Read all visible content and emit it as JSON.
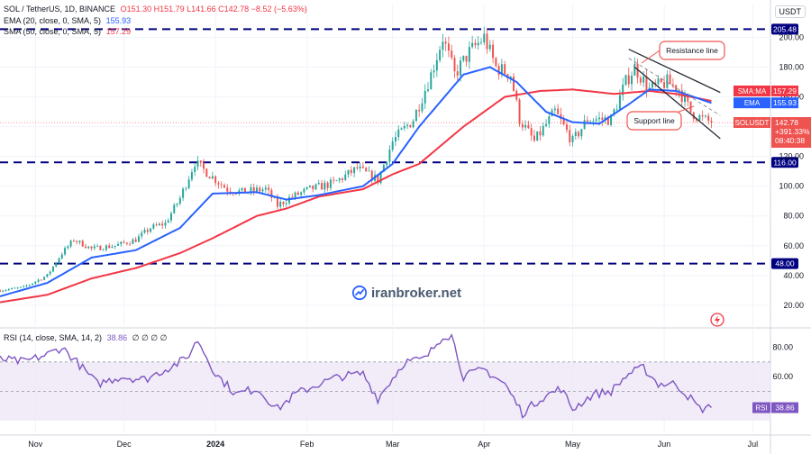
{
  "header": {
    "symbol": "SOL / TetherUS, 1D, BINANCE",
    "ohlc": "O151.30 H151.79 L141.66 C142.78 −8.52 (−5.63%)",
    "ema_label": "EMA (20, close, 0, SMA, 5)",
    "ema_value": "155.93",
    "sma_label": "SMA (50, close, 0, SMA, 5)",
    "sma_value": "157.29",
    "rsi_label": "RSI (14, close, SMA, 14, 2)",
    "rsi_value": "38.86",
    "rsi_extra": "∅ ∅ ∅ ∅",
    "currency": "USDT"
  },
  "watermark": "iranbroker.net",
  "colors": {
    "up": "#26a69a",
    "down": "#ef5350",
    "ema": "#2962ff",
    "sma": "#f23645",
    "rsi": "#7e57c2",
    "level": "#000080",
    "rsi_band": "#ede7f6"
  },
  "annotations": {
    "resistance": "Resistance line",
    "support": "Support line"
  },
  "badges": {
    "sma": {
      "name": "SMA:MA",
      "value": "157.29"
    },
    "ema": {
      "name": "EMA",
      "value": "155.93"
    },
    "price": {
      "name": "SOLUSDT",
      "value": "142.78",
      "pct": "+391.33%",
      "time": "08:40:38"
    },
    "rsi": {
      "name": "RSI",
      "value": "38.86"
    }
  },
  "chart_data": [
    {
      "type": "candlestick",
      "title": "SOL / TetherUS, 1D, BINANCE",
      "y_ticks": [
        20,
        40,
        60,
        80,
        100,
        120,
        140,
        160,
        180,
        200
      ],
      "y_tick_labels": [
        "20.00",
        "40.00",
        "60.00",
        "80.00",
        "100.00",
        "120.00",
        "140.00",
        "160.00",
        "180.00",
        "200.00"
      ],
      "ylim": [
        6,
        213
      ],
      "x_ticks": [
        "Nov",
        "Dec",
        "2024",
        "Feb",
        "Mar",
        "Apr",
        "May",
        "Jun",
        "Jul"
      ],
      "levels": [
        {
          "value": 205.48,
          "label": "205.48"
        },
        {
          "value": 116.0,
          "label": "116.00"
        },
        {
          "value": 48.0,
          "label": "48.00"
        }
      ],
      "last_close": 142.78,
      "anchors_close": [
        [
          "2023-10-20",
          30
        ],
        [
          "2023-10-28",
          32
        ],
        [
          "2023-11-05",
          40
        ],
        [
          "2023-11-10",
          55
        ],
        [
          "2023-11-14",
          64
        ],
        [
          "2023-11-20",
          58
        ],
        [
          "2023-11-28",
          60
        ],
        [
          "2023-12-05",
          64
        ],
        [
          "2023-12-10",
          72
        ],
        [
          "2023-12-15",
          75
        ],
        [
          "2023-12-20",
          92
        ],
        [
          "2023-12-25",
          116
        ],
        [
          "2023-12-31",
          106
        ],
        [
          "2024-01-05",
          98
        ],
        [
          "2024-01-10",
          96
        ],
        [
          "2024-01-18",
          98
        ],
        [
          "2024-01-22",
          87
        ],
        [
          "2024-01-26",
          92
        ],
        [
          "2024-02-02",
          98
        ],
        [
          "2024-02-10",
          102
        ],
        [
          "2024-02-18",
          112
        ],
        [
          "2024-02-25",
          104
        ],
        [
          "2024-03-01",
          130
        ],
        [
          "2024-03-08",
          145
        ],
        [
          "2024-03-14",
          175
        ],
        [
          "2024-03-18",
          200
        ],
        [
          "2024-03-22",
          175
        ],
        [
          "2024-03-27",
          190
        ],
        [
          "2024-04-01",
          200
        ],
        [
          "2024-04-05",
          180
        ],
        [
          "2024-04-10",
          175
        ],
        [
          "2024-04-13",
          145
        ],
        [
          "2024-04-18",
          130
        ],
        [
          "2024-04-25",
          150
        ],
        [
          "2024-05-01",
          130
        ],
        [
          "2024-05-06",
          145
        ],
        [
          "2024-05-14",
          145
        ],
        [
          "2024-05-19",
          170
        ],
        [
          "2024-05-22",
          180
        ],
        [
          "2024-05-27",
          165
        ],
        [
          "2024-06-02",
          170
        ],
        [
          "2024-06-06",
          165
        ],
        [
          "2024-06-10",
          150
        ],
        [
          "2024-06-14",
          145
        ],
        [
          "2024-06-17",
          142.78
        ]
      ],
      "ema20": [
        [
          "2023-10-20",
          26
        ],
        [
          "2023-11-05",
          35
        ],
        [
          "2023-11-20",
          52
        ],
        [
          "2023-12-05",
          57
        ],
        [
          "2023-12-20",
          72
        ],
        [
          "2023-12-31",
          95
        ],
        [
          "2024-01-15",
          96
        ],
        [
          "2024-01-25",
          91
        ],
        [
          "2024-02-05",
          94
        ],
        [
          "2024-02-20",
          100
        ],
        [
          "2024-03-01",
          115
        ],
        [
          "2024-03-10",
          140
        ],
        [
          "2024-03-25",
          175
        ],
        [
          "2024-04-03",
          180
        ],
        [
          "2024-04-12",
          170
        ],
        [
          "2024-04-22",
          150
        ],
        [
          "2024-05-01",
          143
        ],
        [
          "2024-05-10",
          142
        ],
        [
          "2024-05-20",
          155
        ],
        [
          "2024-05-27",
          165
        ],
        [
          "2024-06-05",
          164
        ],
        [
          "2024-06-17",
          155.93
        ]
      ],
      "sma50": [
        [
          "2023-10-20",
          22
        ],
        [
          "2023-11-05",
          27
        ],
        [
          "2023-11-20",
          38
        ],
        [
          "2023-12-05",
          45
        ],
        [
          "2023-12-20",
          55
        ],
        [
          "2023-12-31",
          65
        ],
        [
          "2024-01-15",
          80
        ],
        [
          "2024-01-25",
          85
        ],
        [
          "2024-02-05",
          93
        ],
        [
          "2024-02-20",
          98
        ],
        [
          "2024-03-01",
          108
        ],
        [
          "2024-03-10",
          115
        ],
        [
          "2024-03-25",
          140
        ],
        [
          "2024-04-08",
          160
        ],
        [
          "2024-04-20",
          164
        ],
        [
          "2024-05-01",
          165
        ],
        [
          "2024-05-15",
          162
        ],
        [
          "2024-05-27",
          164
        ],
        [
          "2024-06-05",
          162
        ],
        [
          "2024-06-17",
          157.29
        ]
      ],
      "channel": {
        "upper": [
          [
            "2024-05-20",
            192
          ],
          [
            "2024-06-20",
            163
          ]
        ],
        "lower": [
          [
            "2024-05-22",
            180
          ],
          [
            "2024-06-20",
            132
          ]
        ]
      }
    },
    {
      "type": "line",
      "title": "RSI (14, close, SMA, 14, 2)",
      "y_ticks": [
        40,
        60,
        80
      ],
      "y_tick_labels": [
        "40.00",
        "60.00",
        "80.00"
      ],
      "ylim": [
        22,
        92
      ],
      "band": [
        30,
        70
      ],
      "midline": 50,
      "last": 38.86,
      "anchors": [
        [
          "2023-10-20",
          72
        ],
        [
          "2023-10-28",
          70
        ],
        [
          "2023-11-05",
          75
        ],
        [
          "2023-11-10",
          80
        ],
        [
          "2023-11-15",
          70
        ],
        [
          "2023-11-22",
          55
        ],
        [
          "2023-11-30",
          60
        ],
        [
          "2023-12-08",
          58
        ],
        [
          "2023-12-15",
          65
        ],
        [
          "2023-12-22",
          72
        ],
        [
          "2023-12-26",
          85
        ],
        [
          "2024-01-01",
          62
        ],
        [
          "2024-01-08",
          48
        ],
        [
          "2024-01-15",
          52
        ],
        [
          "2024-01-22",
          38
        ],
        [
          "2024-01-28",
          48
        ],
        [
          "2024-02-05",
          55
        ],
        [
          "2024-02-12",
          60
        ],
        [
          "2024-02-20",
          62
        ],
        [
          "2024-02-25",
          45
        ],
        [
          "2024-03-05",
          70
        ],
        [
          "2024-03-12",
          72
        ],
        [
          "2024-03-18",
          88
        ],
        [
          "2024-03-21",
          88
        ],
        [
          "2024-03-25",
          60
        ],
        [
          "2024-04-01",
          65
        ],
        [
          "2024-04-08",
          55
        ],
        [
          "2024-04-14",
          35
        ],
        [
          "2024-04-20",
          45
        ],
        [
          "2024-04-27",
          52
        ],
        [
          "2024-05-01",
          38
        ],
        [
          "2024-05-08",
          48
        ],
        [
          "2024-05-14",
          50
        ],
        [
          "2024-05-20",
          62
        ],
        [
          "2024-05-25",
          66
        ],
        [
          "2024-05-30",
          55
        ],
        [
          "2024-06-05",
          55
        ],
        [
          "2024-06-10",
          45
        ],
        [
          "2024-06-13",
          38
        ],
        [
          "2024-06-17",
          38.86
        ]
      ]
    }
  ]
}
